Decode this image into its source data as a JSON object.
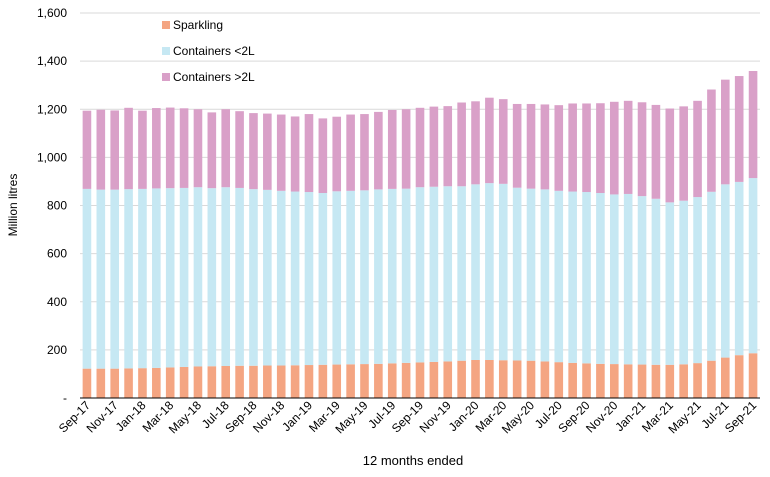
{
  "chart_data": {
    "type": "bar",
    "stacked": true,
    "title": "",
    "xlabel": "12 months ended",
    "ylabel": "Million litres",
    "ylim": [
      0,
      1600
    ],
    "yticks": [
      0,
      200,
      400,
      600,
      800,
      1000,
      1200,
      1400,
      1600
    ],
    "ytick_labels": [
      "-",
      "200",
      "400",
      "600",
      "800",
      "1,000",
      "1,200",
      "1,400",
      "1,600"
    ],
    "grid": true,
    "legend_position": "top-left",
    "categories": [
      "Sep-17",
      "Oct-17",
      "Nov-17",
      "Dec-17",
      "Jan-18",
      "Feb-18",
      "Mar-18",
      "Apr-18",
      "May-18",
      "Jun-18",
      "Jul-18",
      "Aug-18",
      "Sep-18",
      "Oct-18",
      "Nov-18",
      "Dec-18",
      "Jan-19",
      "Feb-19",
      "Mar-19",
      "Apr-19",
      "May-19",
      "Jun-19",
      "Jul-19",
      "Aug-19",
      "Sep-19",
      "Oct-19",
      "Nov-19",
      "Dec-19",
      "Jan-20",
      "Feb-20",
      "Mar-20",
      "Apr-20",
      "May-20",
      "Jun-20",
      "Jul-20",
      "Aug-20",
      "Sep-20",
      "Oct-20",
      "Nov-20",
      "Dec-20",
      "Jan-21",
      "Feb-21",
      "Mar-21",
      "Apr-21",
      "May-21",
      "Jun-21",
      "Jul-21",
      "Aug-21",
      "Sep-21"
    ],
    "x_tick_labels": [
      "Sep-17",
      "",
      "Nov-17",
      "",
      "Jan-18",
      "",
      "Mar-18",
      "",
      "May-18",
      "",
      "Jul-18",
      "",
      "Sep-18",
      "",
      "Nov-18",
      "",
      "Jan-19",
      "",
      "Mar-19",
      "",
      "May-19",
      "",
      "Jul-19",
      "",
      "Sep-19",
      "",
      "Nov-19",
      "",
      "Jan-20",
      "",
      "Mar-20",
      "",
      "May-20",
      "",
      "Jul-20",
      "",
      "Sep-20",
      "",
      "Nov-20",
      "",
      "Jan-21",
      "",
      "Mar-21",
      "",
      "May-21",
      "",
      "Jul-21",
      "",
      "Sep-21"
    ],
    "series": [
      {
        "name": "Sparkling",
        "color": "#f4a582",
        "values": [
          122,
          122,
          122,
          123,
          124,
          125,
          127,
          129,
          131,
          132,
          133,
          134,
          134,
          135,
          135,
          136,
          137,
          138,
          139,
          140,
          141,
          142,
          144,
          146,
          148,
          150,
          152,
          155,
          158,
          158,
          157,
          156,
          155,
          152,
          149,
          146,
          144,
          142,
          141,
          140,
          139,
          138,
          138,
          140,
          145,
          155,
          168,
          178,
          186
        ]
      },
      {
        "name": "Containers <2L",
        "color": "#c6e8f3",
        "values": [
          747,
          744,
          744,
          745,
          745,
          746,
          745,
          744,
          745,
          740,
          743,
          739,
          734,
          730,
          726,
          722,
          719,
          714,
          720,
          721,
          722,
          725,
          725,
          724,
          728,
          728,
          728,
          725,
          730,
          735,
          733,
          718,
          715,
          715,
          712,
          712,
          712,
          710,
          705,
          708,
          700,
          690,
          675,
          680,
          690,
          702,
          720,
          720,
          728
        ]
      },
      {
        "name": "Containers >2L",
        "color": "#d9a0c8",
        "values": [
          325,
          332,
          329,
          338,
          325,
          334,
          335,
          331,
          324,
          315,
          324,
          319,
          316,
          317,
          317,
          312,
          324,
          310,
          310,
          317,
          317,
          322,
          328,
          330,
          330,
          333,
          333,
          348,
          345,
          355,
          352,
          348,
          352,
          353,
          356,
          366,
          368,
          373,
          385,
          387,
          390,
          390,
          390,
          392,
          400,
          425,
          435,
          440,
          445
        ]
      }
    ]
  }
}
